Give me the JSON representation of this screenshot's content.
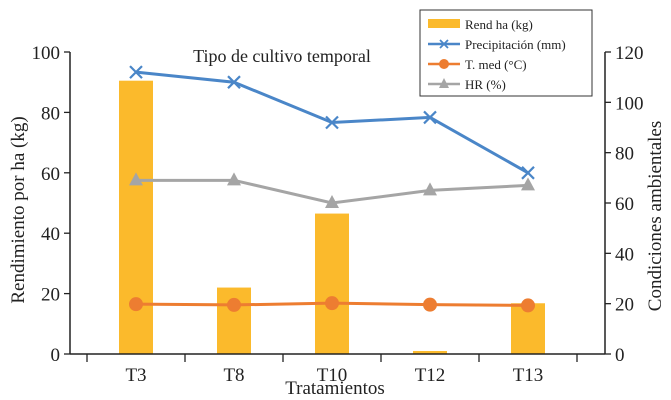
{
  "chart_data": {
    "type": "bar",
    "title": "Tipo de cultivo temporal",
    "xlabel": "Tratamientos",
    "ylabel": "Rendimiento por ha (kg)",
    "y2label": "Condiciones ambientales",
    "categories": [
      "T3",
      "T8",
      "T10",
      "T12",
      "T13"
    ],
    "ylim": [
      0,
      100
    ],
    "y2lim": [
      0,
      120
    ],
    "yticks": [
      "0",
      "20",
      "40",
      "60",
      "80",
      "100"
    ],
    "y2ticks": [
      "0",
      "20",
      "40",
      "60",
      "80",
      "100",
      "120"
    ],
    "legend_position": "top-right",
    "series": [
      {
        "name": "Rend ha (kg)",
        "kind": "bar",
        "axis": "left",
        "color": "#FBBA2C",
        "values": [
          90.5,
          22,
          46.5,
          1,
          16.8
        ]
      },
      {
        "name": "Precipitación (mm)",
        "kind": "line",
        "axis": "right",
        "marker": "x",
        "color": "#4A86C8",
        "values": [
          112,
          108,
          92,
          94,
          72
        ]
      },
      {
        "name": "T. med (°C)",
        "kind": "line",
        "axis": "right",
        "marker": "circle",
        "color": "#ED7D31",
        "values": [
          19.8,
          19.5,
          20.2,
          19.6,
          19.3
        ]
      },
      {
        "name": "HR (%)",
        "kind": "line",
        "axis": "right",
        "marker": "triangle",
        "color": "#A5A5A5",
        "values": [
          69,
          69,
          60,
          65,
          67
        ]
      }
    ]
  }
}
